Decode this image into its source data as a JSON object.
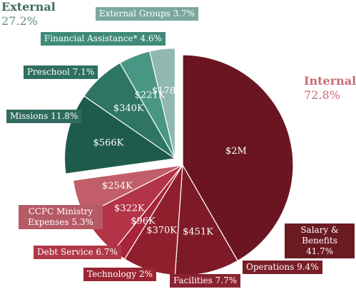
{
  "chart_data": {
    "type": "pie",
    "title": "",
    "unit": "%",
    "groups": [
      {
        "key": "external",
        "name": "External",
        "value_label": "27.2%",
        "value": 27.2,
        "color": "#3f6b5f"
      },
      {
        "key": "internal",
        "name": "Internal",
        "value_label": "72.8%",
        "value": 72.8,
        "color": "#c76b72"
      }
    ],
    "slices": [
      {
        "group": "external",
        "name": "Missions",
        "label": "Missions 11.8%",
        "percent": 11.8,
        "amount": "$566K",
        "color": "#1f5b4c",
        "tag_color": "#2f6b5e"
      },
      {
        "group": "external",
        "name": "Preschool",
        "label": "Preschool 7.1%",
        "percent": 7.1,
        "amount": "$340K",
        "color": "#2e7563",
        "tag_color": "#2f6f60"
      },
      {
        "group": "external",
        "name": "Financial Assistance*",
        "label": "Financial Assistance* 4.6%",
        "percent": 4.6,
        "amount": "$221K",
        "color": "#4a9684",
        "tag_color": "#3f8a79"
      },
      {
        "group": "external",
        "name": "External Groups",
        "label": "External Groups 3.7%",
        "percent": 3.7,
        "amount": "$178K",
        "color": "#8fb8ae",
        "tag_color": "#7aa89d"
      },
      {
        "group": "internal",
        "name": "Salary & Benefits",
        "label": "Salary & Benefits 41.7%",
        "percent": 41.7,
        "amount": "$2M",
        "color": "#6a1520",
        "tag_color": "#6b1a22"
      },
      {
        "group": "internal",
        "name": "Operations",
        "label": "Operations 9.4%",
        "percent": 9.4,
        "amount": "$451K",
        "color": "#7e1a27",
        "tag_color": "#7a1e27"
      },
      {
        "group": "internal",
        "name": "Facilities",
        "label": "Facilities 7.7%",
        "percent": 7.7,
        "amount": "$370K",
        "color": "#8f1f2d",
        "tag_color": "#8a2330"
      },
      {
        "group": "internal",
        "name": "Technology",
        "label": "Technology 2%",
        "percent": 2.0,
        "amount": "$96K",
        "color": "#a8243a",
        "tag_color": "#9b2633"
      },
      {
        "group": "internal",
        "name": "Debt Service",
        "label": "Debt Service 6.7%",
        "percent": 6.7,
        "amount": "$322K",
        "color": "#b33347",
        "tag_color": "#b13848"
      },
      {
        "group": "internal",
        "name": "CCPC Ministry Expenses",
        "label": "CCPC Ministry Expenses 5.3%",
        "percent": 5.3,
        "amount": "$254K",
        "color": "#c25e69",
        "tag_color": "#b65a65"
      }
    ]
  }
}
